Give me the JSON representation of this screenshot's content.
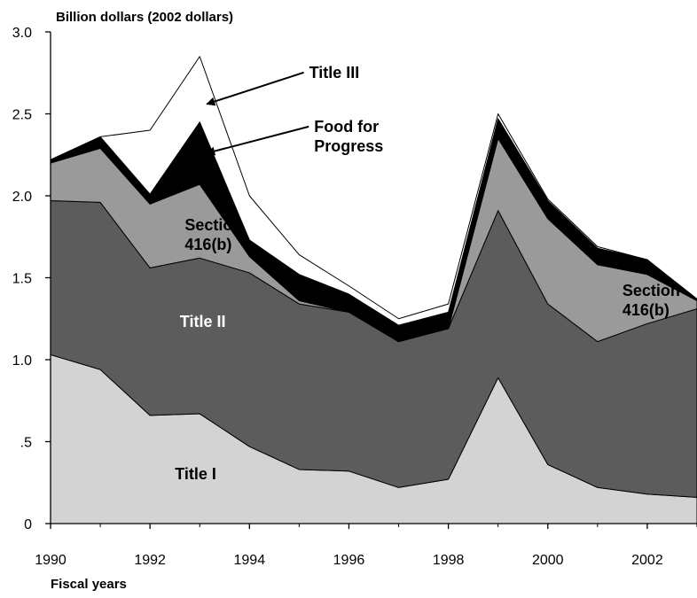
{
  "chart_data": {
    "type": "area",
    "title": "",
    "ylabel": "Billion dollars (2002 dollars)",
    "xlabel": "Fiscal years",
    "x": [
      1990,
      1991,
      1992,
      1993,
      1994,
      1995,
      1996,
      1997,
      1998,
      1999,
      2000,
      2001,
      2002,
      2003
    ],
    "xlim": [
      1990,
      2003
    ],
    "ylim": [
      0,
      3.0
    ],
    "x_ticks": [
      {
        "value": 1990,
        "label": "1990"
      },
      {
        "value": 1992,
        "label": "1992"
      },
      {
        "value": 1994,
        "label": "1994"
      },
      {
        "value": 1996,
        "label": "1996"
      },
      {
        "value": 1998,
        "label": "1998"
      },
      {
        "value": 2000,
        "label": "2000"
      },
      {
        "value": 2002,
        "label": "2002"
      }
    ],
    "y_ticks": [
      {
        "value": 0,
        "label": "0"
      },
      {
        "value": 0.5,
        "label": ".5"
      },
      {
        "value": 1.0,
        "label": "1.0"
      },
      {
        "value": 1.5,
        "label": "1.5"
      },
      {
        "value": 2.0,
        "label": "2.0"
      },
      {
        "value": 2.5,
        "label": "2.5"
      },
      {
        "value": 3.0,
        "label": "3.0"
      }
    ],
    "grid": false,
    "stacked": true,
    "series": [
      {
        "name": "Title I",
        "color": "#d3d3d3",
        "values": [
          1.03,
          0.94,
          0.66,
          0.67,
          0.47,
          0.33,
          0.32,
          0.22,
          0.27,
          0.89,
          0.36,
          0.22,
          0.18,
          0.16
        ]
      },
      {
        "name": "Title II",
        "color": "#5c5c5c",
        "values": [
          0.94,
          1.02,
          0.9,
          0.95,
          1.06,
          1.01,
          0.97,
          0.89,
          0.92,
          1.02,
          0.98,
          0.89,
          1.04,
          1.15
        ]
      },
      {
        "name": "Section 416(b)",
        "color": "#9a9a9a",
        "values": [
          0.23,
          0.33,
          0.39,
          0.45,
          0.1,
          0.02,
          0.0,
          0.0,
          0.0,
          0.44,
          0.52,
          0.47,
          0.3,
          0.05
        ]
      },
      {
        "name": "Food for Progress",
        "color": "#000000",
        "values": [
          0.02,
          0.07,
          0.06,
          0.38,
          0.1,
          0.16,
          0.11,
          0.1,
          0.1,
          0.12,
          0.11,
          0.1,
          0.09,
          0.01
        ]
      },
      {
        "name": "Title III",
        "color": "#ffffff",
        "values": [
          0.0,
          0.0,
          0.39,
          0.4,
          0.27,
          0.12,
          0.05,
          0.04,
          0.05,
          0.03,
          0.01,
          0.01,
          0.0,
          0.0
        ]
      }
    ],
    "annotations": [
      {
        "series": "Title I",
        "text": "Title I",
        "lines": [
          "Title I"
        ],
        "color": "#000000",
        "x": 1992.5,
        "y": 0.27,
        "arrow": null
      },
      {
        "series": "Title II",
        "text": "Title II",
        "lines": [
          "Title II"
        ],
        "color": "#ffffff",
        "x": 1992.6,
        "y": 1.2,
        "arrow": null
      },
      {
        "series": "Section 416(b)",
        "text": "Section 416(b)",
        "lines": [
          "Section",
          "416(b)"
        ],
        "color": "#000000",
        "x": 1992.7,
        "y": 1.79,
        "arrow": null
      },
      {
        "series": "Section 416(b)",
        "text": "Section 416(b)",
        "lines": [
          "Section",
          "416(b)"
        ],
        "color": "#000000",
        "x": 2001.5,
        "y": 1.39,
        "arrow": null
      },
      {
        "series": "Food for Progress",
        "text": "Food for Progress",
        "lines": [
          "Food for",
          "Progress"
        ],
        "color": "#000000",
        "x": 1995.3,
        "y": 2.39,
        "arrow": {
          "x": 1993.0,
          "y": 2.26
        }
      },
      {
        "series": "Title III",
        "text": "Title III",
        "lines": [
          "Title III"
        ],
        "color": "#000000",
        "x": 1995.2,
        "y": 2.72,
        "arrow": {
          "x": 1993.0,
          "y": 2.56
        }
      }
    ]
  }
}
